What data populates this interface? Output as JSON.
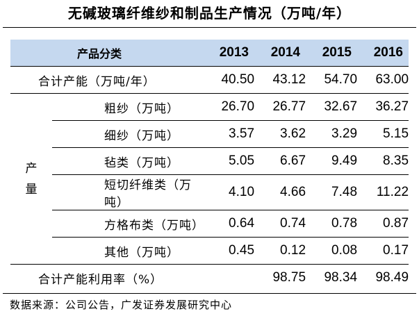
{
  "title": "无碱玻璃纤维纱和制品生产情况（万吨/年）",
  "table": {
    "header": {
      "category": "产品分类",
      "years": [
        "2013",
        "2014",
        "2015",
        "2016"
      ]
    },
    "capacity_row": {
      "label": "合计产能（万吨/年）",
      "values": [
        "40.50",
        "43.12",
        "54.70",
        "63.00"
      ]
    },
    "output_group": {
      "label_chars": [
        "产",
        "量"
      ],
      "rows": [
        {
          "label": "粗纱（万吨）",
          "values": [
            "26.70",
            "26.77",
            "32.67",
            "36.27"
          ]
        },
        {
          "label": "细纱（万吨）",
          "values": [
            "3.57",
            "3.62",
            "3.29",
            "5.15"
          ]
        },
        {
          "label": "毡类（万吨）",
          "values": [
            "5.05",
            "6.67",
            "9.49",
            "8.35"
          ]
        },
        {
          "label": "短切纤维类（万吨）",
          "values": [
            "4.10",
            "4.66",
            "7.48",
            "11.22"
          ]
        },
        {
          "label": "方格布类（万吨）",
          "values": [
            "0.64",
            "0.74",
            "0.78",
            "0.87"
          ]
        },
        {
          "label": "其他（万吨）",
          "values": [
            "0.45",
            "0.12",
            "0.08",
            "0.17"
          ]
        }
      ]
    },
    "utilization_row": {
      "label": "合计产能利用率（%）",
      "values": [
        "",
        "98.75",
        "98.34",
        "98.49"
      ]
    }
  },
  "source": "数据来源：公司公告，广发证券发展研究中心",
  "colors": {
    "header_bg": "#c5d8ef"
  }
}
